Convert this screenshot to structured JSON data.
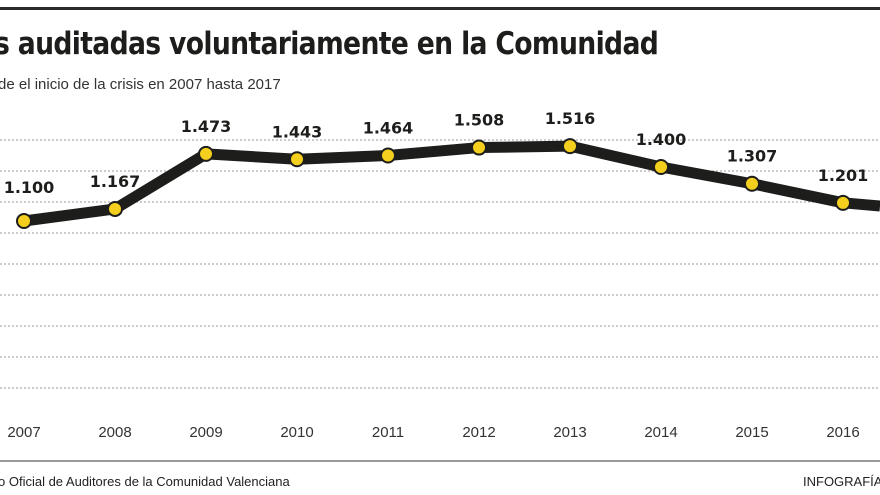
{
  "title": "s auditadas voluntariamente en la Comunidad",
  "subtitle": "de el inicio de la crisis en 2007 hasta 2017",
  "source": "o Oficial de Auditores de la Comunidad Valenciana",
  "credit": "INFOGRAFÍA",
  "colors": {
    "line": "#1d1d1b",
    "marker": "#f5cf1d",
    "grid": "#9a9a9a"
  },
  "chart_data": {
    "type": "line",
    "title": "s auditadas voluntariamente en la Comunidad",
    "subtitle": "de el inicio de la crisis en 2007 hasta 2017",
    "categories": [
      "2007",
      "2008",
      "2009",
      "2010",
      "2011",
      "2012",
      "2013",
      "2014",
      "2015",
      "2016"
    ],
    "values": [
      1100,
      1167,
      1473,
      1443,
      1464,
      1508,
      1516,
      1400,
      1307,
      1201
    ],
    "labels": [
      "1.100",
      "1.167",
      "1.473",
      "1.443",
      "1.464",
      "1.508",
      "1.516",
      "1.400",
      "1.307",
      "1.201"
    ],
    "grid": true,
    "xlabel": "",
    "ylabel": ""
  }
}
